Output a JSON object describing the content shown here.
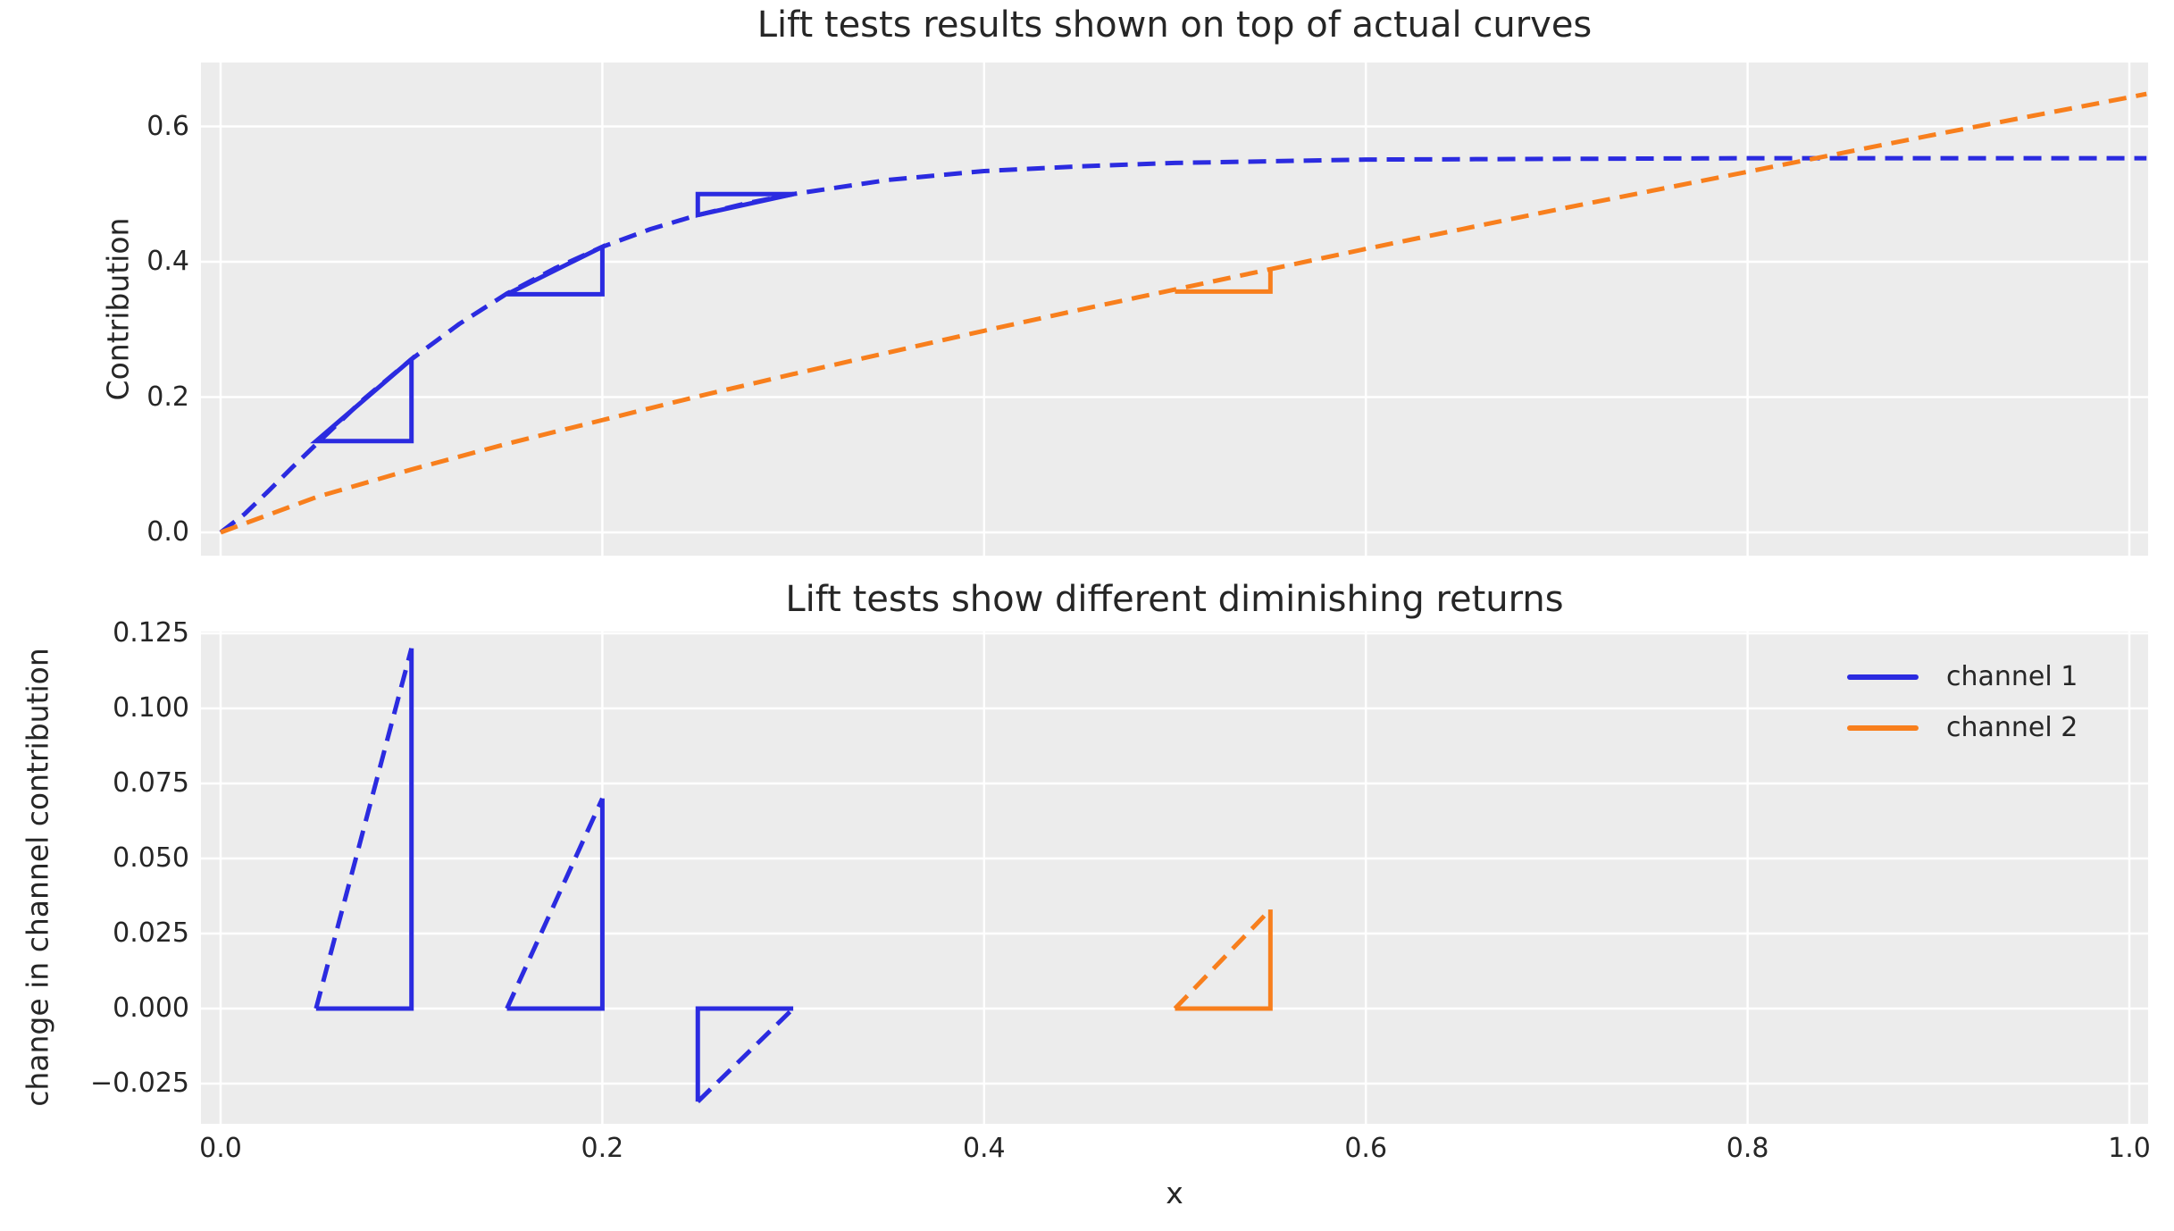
{
  "colors": {
    "channel1": "#2b2be0",
    "channel2": "#f87f1d",
    "axes_bg": "#ececec",
    "grid": "#ffffff",
    "text": "#262626"
  },
  "top_chart": {
    "title": "Lift tests results shown on top of actual curves",
    "ylabel": "Contribution",
    "ytick_labels": [
      "0.0",
      "0.2",
      "0.4",
      "0.6"
    ],
    "ytick_values": [
      0.0,
      0.2,
      0.4,
      0.6
    ]
  },
  "bottom_chart": {
    "title": "Lift tests show different diminishing returns",
    "ylabel": "change in channel contribution",
    "xlabel": "x",
    "ytick_labels": [
      "0.125",
      "0.100",
      "0.075",
      "0.050",
      "0.025",
      "0.000",
      "−0.025"
    ],
    "ytick_values": [
      0.125,
      0.1,
      0.075,
      0.05,
      0.025,
      0.0,
      -0.025
    ],
    "xtick_labels": [
      "0.0",
      "0.2",
      "0.4",
      "0.6",
      "0.8",
      "1.0"
    ],
    "xtick_values": [
      0.0,
      0.2,
      0.4,
      0.6,
      0.8,
      1.0
    ],
    "legend": [
      {
        "label": "channel 1",
        "color_key": "channel1"
      },
      {
        "label": "channel 2",
        "color_key": "channel2"
      }
    ]
  },
  "chart_data": [
    {
      "type": "line",
      "title": "Lift tests results shown on top of actual curves",
      "xlabel": "x",
      "ylabel": "Contribution",
      "xlim": [
        0,
        1
      ],
      "ytick_range": [
        0.0,
        0.6
      ],
      "grid": true,
      "series": [
        {
          "name": "channel-1-curve",
          "legend_label": "channel 1",
          "color_key": "channel1",
          "line_style": "dashed",
          "points": [
            [
              0,
              0
            ],
            [
              0.0125,
              0.027
            ],
            [
              0.025,
              0.061
            ],
            [
              0.0375,
              0.096
            ],
            [
              0.05,
              0.13
            ],
            [
              0.075,
              0.197
            ],
            [
              0.1,
              0.256
            ],
            [
              0.125,
              0.308
            ],
            [
              0.15,
              0.353
            ],
            [
              0.175,
              0.39
            ],
            [
              0.2,
              0.422
            ],
            [
              0.225,
              0.448
            ],
            [
              0.25,
              0.469
            ],
            [
              0.275,
              0.486
            ],
            [
              0.3,
              0.5
            ],
            [
              0.35,
              0.521
            ],
            [
              0.4,
              0.534
            ],
            [
              0.45,
              0.541
            ],
            [
              0.5,
              0.546
            ],
            [
              0.6,
              0.551
            ],
            [
              0.7,
              0.552
            ],
            [
              0.8,
              0.553
            ],
            [
              0.9,
              0.553
            ],
            [
              1.0,
              0.553
            ],
            [
              1.009,
              0.553
            ]
          ]
        },
        {
          "name": "channel-2-curve",
          "legend_label": "channel 2",
          "color_key": "channel2",
          "line_style": "dashed",
          "points": [
            [
              0,
              0
            ],
            [
              0.05,
              0.052
            ],
            [
              0.1,
              0.093
            ],
            [
              0.15,
              0.131
            ],
            [
              0.2,
              0.166
            ],
            [
              0.25,
              0.201
            ],
            [
              0.3,
              0.234
            ],
            [
              0.35,
              0.266
            ],
            [
              0.4,
              0.298
            ],
            [
              0.45,
              0.329
            ],
            [
              0.5,
              0.359
            ],
            [
              0.55,
              0.389
            ],
            [
              0.6,
              0.419
            ],
            [
              0.65,
              0.448
            ],
            [
              0.7,
              0.477
            ],
            [
              0.75,
              0.505
            ],
            [
              0.8,
              0.533
            ],
            [
              0.85,
              0.561
            ],
            [
              0.9,
              0.589
            ],
            [
              0.95,
              0.616
            ],
            [
              1.0,
              0.643
            ],
            [
              1.009,
              0.648
            ]
          ]
        }
      ],
      "lift_test_overlays": [
        {
          "channel": "channel 1",
          "color_key": "channel1",
          "closed": true,
          "points": [
            [
              0.05,
              0.135
            ],
            [
              0.1,
              0.256
            ],
            [
              0.1,
              0.135
            ]
          ]
        },
        {
          "channel": "channel 1",
          "color_key": "channel1",
          "closed": true,
          "points": [
            [
              0.15,
              0.352
            ],
            [
              0.2,
              0.422
            ],
            [
              0.2,
              0.352
            ]
          ]
        },
        {
          "channel": "channel 1",
          "color_key": "channel1",
          "closed": true,
          "points": [
            [
              0.25,
              0.469
            ],
            [
              0.3,
              0.5
            ],
            [
              0.25,
              0.5
            ]
          ]
        },
        {
          "channel": "channel 2",
          "color_key": "channel2",
          "closed": false,
          "points": [
            [
              0.5,
              0.356
            ],
            [
              0.55,
              0.356
            ],
            [
              0.55,
              0.389
            ]
          ]
        }
      ]
    },
    {
      "type": "line",
      "title": "Lift tests show different diminishing returns",
      "xlabel": "x",
      "ylabel": "change in channel contribution",
      "xlim": [
        0,
        1
      ],
      "ytick_range": [
        -0.025,
        0.125
      ],
      "grid": true,
      "legend_position": "upper right",
      "lift_tests": [
        {
          "channel": "channel 1",
          "x_start": 0.05,
          "x_end": 0.1,
          "lift": 0.12
        },
        {
          "channel": "channel 1",
          "x_start": 0.15,
          "x_end": 0.2,
          "lift": 0.07
        },
        {
          "channel": "channel 1",
          "x_start": 0.25,
          "x_end": 0.3,
          "lift": -0.031
        },
        {
          "channel": "channel 2",
          "x_start": 0.5,
          "x_end": 0.55,
          "lift": 0.033
        }
      ],
      "triangles": [
        {
          "color_key": "channel1",
          "solid": [
            [
              0.05,
              0
            ],
            [
              0.1,
              0
            ],
            [
              0.1,
              0.12
            ]
          ],
          "dashed": [
            [
              0.05,
              0
            ],
            [
              0.1,
              0.12
            ]
          ]
        },
        {
          "color_key": "channel1",
          "solid": [
            [
              0.15,
              0
            ],
            [
              0.2,
              0
            ],
            [
              0.2,
              0.07
            ]
          ],
          "dashed": [
            [
              0.15,
              0
            ],
            [
              0.2,
              0.07
            ]
          ]
        },
        {
          "color_key": "channel1",
          "solid": [
            [
              0.25,
              -0.031
            ],
            [
              0.25,
              0
            ],
            [
              0.3,
              0
            ]
          ],
          "dashed": [
            [
              0.25,
              -0.031
            ],
            [
              0.3,
              0
            ]
          ]
        },
        {
          "color_key": "channel2",
          "solid": [
            [
              0.5,
              0
            ],
            [
              0.55,
              0
            ],
            [
              0.55,
              0.033
            ]
          ],
          "dashed": [
            [
              0.5,
              0
            ],
            [
              0.55,
              0.033
            ]
          ]
        }
      ]
    }
  ]
}
